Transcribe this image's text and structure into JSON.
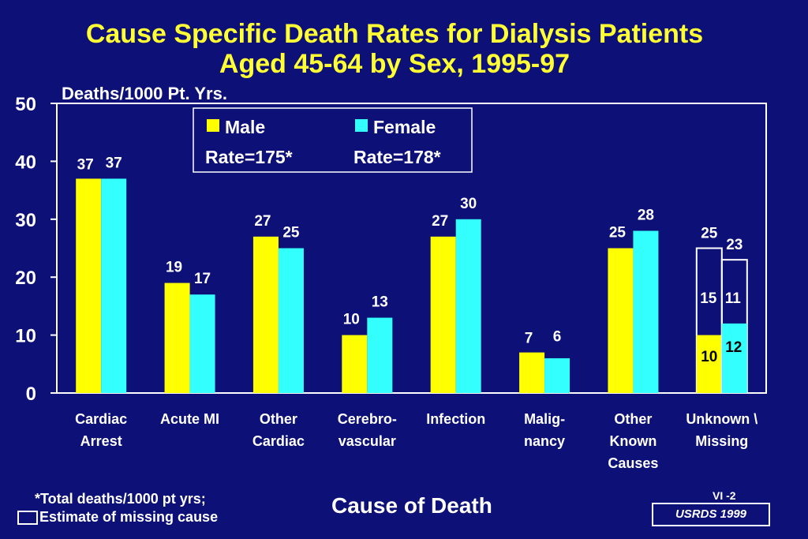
{
  "title_line1": "Cause Specific Death Rates for Dialysis  Patients",
  "title_line2": "Aged 45-64 by Sex, 1995-97",
  "footnote1": "*Total deaths/1000 pt yrs;",
  "footnote2": "Estimate of missing cause",
  "slide_id": "VI -2",
  "source": "USRDS  1999",
  "colors": {
    "male": "#ffff00",
    "female": "#33ffff",
    "background": "#0d1177",
    "title": "#ffff33"
  },
  "chart_data": {
    "type": "bar",
    "ylabel": "Deaths/1000 Pt. Yrs.",
    "xlabel": "Cause of Death",
    "ylim": [
      0,
      50
    ],
    "yticks": [
      0,
      10,
      20,
      30,
      40,
      50
    ],
    "categories": [
      [
        "Cardiac",
        "Arrest"
      ],
      [
        "Acute MI"
      ],
      [
        "Other",
        "Cardiac"
      ],
      [
        "Cerebro-",
        "vascular"
      ],
      [
        "Infection"
      ],
      [
        "Malig-",
        "nancy"
      ],
      [
        "Other",
        "Known",
        "Causes"
      ],
      [
        "Unknown \\",
        "Missing"
      ]
    ],
    "series": [
      {
        "name": "Male",
        "values": [
          37,
          19,
          27,
          10,
          27,
          7,
          25,
          10
        ],
        "labels": [
          "37",
          "19",
          "27",
          "10",
          "27",
          "7",
          "25",
          "10"
        ]
      },
      {
        "name": "Female",
        "values": [
          37,
          17,
          25,
          13,
          30,
          6,
          28,
          12
        ],
        "labels": [
          "37",
          "17",
          "25",
          "13",
          "30",
          "6",
          "28",
          "12"
        ]
      }
    ],
    "estimated_missing": {
      "category_index": 7,
      "male": {
        "value": 15,
        "total": 25,
        "label": "15",
        "total_label": "25"
      },
      "female": {
        "value": 11,
        "total": 23,
        "label": "11",
        "total_label": "23"
      }
    },
    "legend": {
      "placement": "top-center",
      "entries": [
        {
          "name": "Male",
          "rate": "Rate=175*"
        },
        {
          "name": "Female",
          "rate": "Rate=178*"
        }
      ]
    },
    "grid": false
  }
}
